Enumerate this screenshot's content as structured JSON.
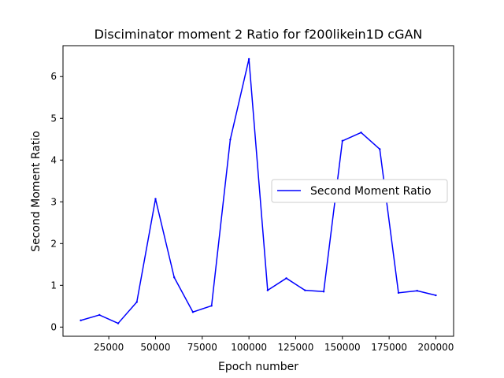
{
  "chart_data": {
    "type": "line",
    "title": "Disciminator moment 2 Ratio for f200likein1D cGAN",
    "xlabel": "Epoch number",
    "ylabel": "Second Moment Ratio",
    "xlim": [
      500,
      209500
    ],
    "ylim": [
      -0.22,
      6.74
    ],
    "xticks": [
      25000,
      50000,
      75000,
      100000,
      125000,
      150000,
      175000,
      200000
    ],
    "xtick_labels": [
      "25000",
      "50000",
      "75000",
      "100000",
      "125000",
      "150000",
      "175000",
      "200000"
    ],
    "yticks": [
      0,
      1,
      2,
      3,
      4,
      5,
      6
    ],
    "ytick_labels": [
      "0",
      "1",
      "2",
      "3",
      "4",
      "5",
      "6"
    ],
    "grid": false,
    "legend_position": "center-right",
    "colors": {
      "series": "#0000ff",
      "axes": "#000000",
      "background": "#ffffff"
    },
    "series": [
      {
        "name": "Second Moment Ratio",
        "x": [
          10000,
          20000,
          30000,
          40000,
          50000,
          60000,
          70000,
          80000,
          90000,
          100000,
          110000,
          120000,
          130000,
          140000,
          150000,
          160000,
          170000,
          180000,
          190000,
          200000
        ],
        "y": [
          0.16,
          0.29,
          0.09,
          0.6,
          3.07,
          1.19,
          0.36,
          0.51,
          4.49,
          6.42,
          0.88,
          1.17,
          0.88,
          0.85,
          4.46,
          4.66,
          4.26,
          0.82,
          0.87,
          0.76
        ]
      }
    ]
  }
}
